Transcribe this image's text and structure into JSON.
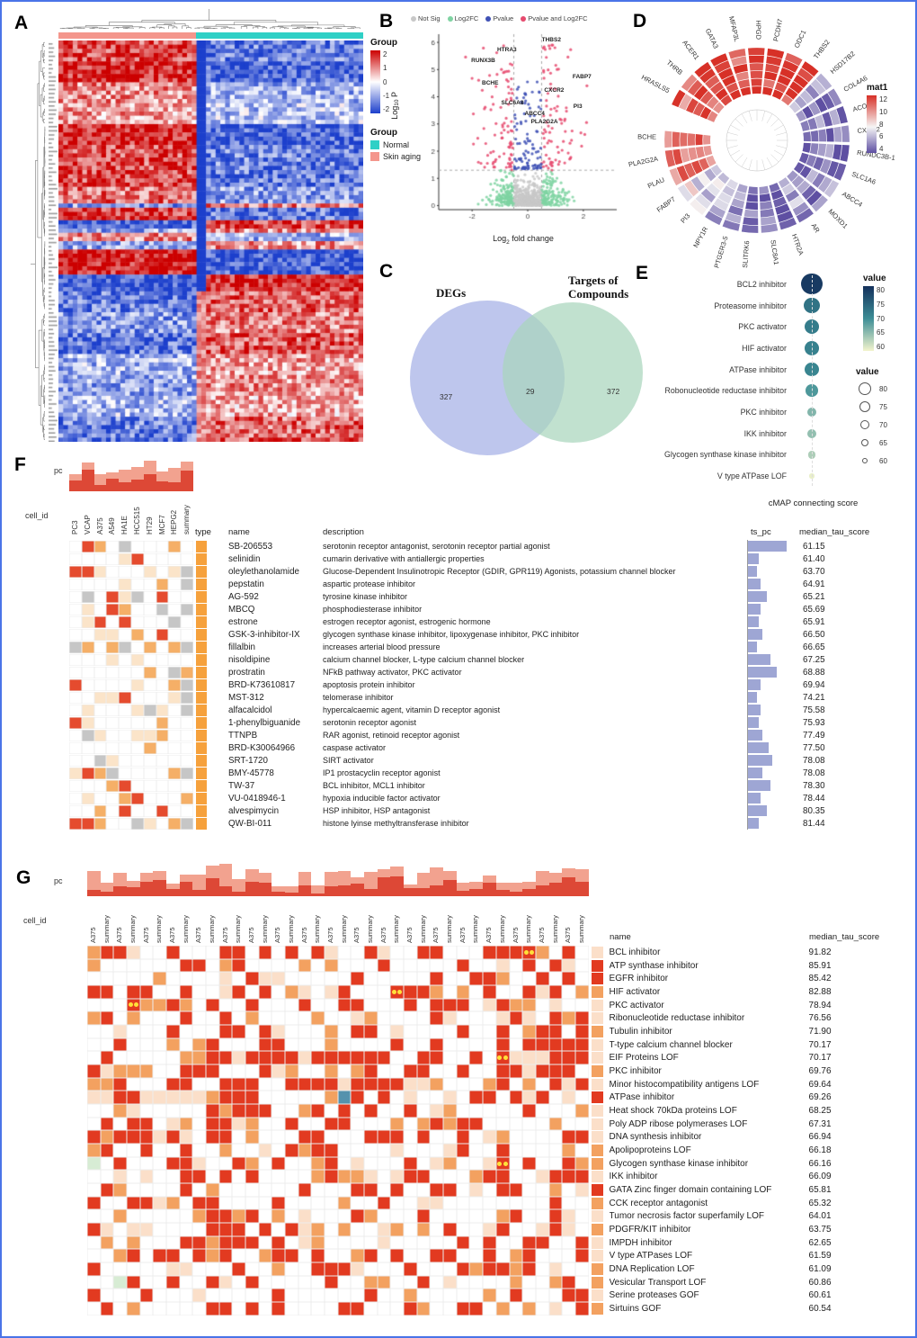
{
  "chart_data": [
    {
      "panel": "A",
      "letter": "A",
      "type": "heatmap",
      "colorbar_title": "Group",
      "colorbar_ticks": [
        "2",
        "1",
        "0",
        "-1",
        "-2"
      ],
      "group_legend_title": "Group",
      "groups": [
        {
          "label": "Normal",
          "color": "#2fd0c6"
        },
        {
          "label": "Skin aging",
          "color": "#f4968c"
        }
      ],
      "column_group_order": [
        "Skin aging",
        "Normal"
      ],
      "column_split_ratio": 0.45,
      "heat_colors": {
        "high": "#cc0000",
        "mid": "#ffffff",
        "low": "#1c3fcc"
      },
      "grid": {
        "rows": 96,
        "cols": 64
      }
    },
    {
      "panel": "B",
      "letter": "B",
      "type": "scatter",
      "subtype": "volcano",
      "xlabel_parts": [
        "Log",
        "2",
        " fold change"
      ],
      "ylabel_parts": [
        "Log",
        "10",
        " P"
      ],
      "x_ticks": [
        "-2",
        "0",
        "2"
      ],
      "y_ticks": [
        "0",
        "1",
        "2",
        "3",
        "4",
        "5",
        "6"
      ],
      "xlim": [
        -3.2,
        3.2
      ],
      "ylim": [
        -0.15,
        6.3
      ],
      "legend": [
        {
          "label": "Not Sig",
          "color": "#c8c8c8"
        },
        {
          "label": "Log2FC",
          "color": "#7fd3a2"
        },
        {
          "label": "Pvalue",
          "color": "#3f51b5"
        },
        {
          "label": "Pvalue and Log2FC",
          "color": "#e64a6e"
        }
      ],
      "thresholds": {
        "log2fc": 0.5,
        "p": 1.3
      },
      "labeled_points": [
        {
          "gene": "HTRA3",
          "x": -0.75,
          "y": 5.55
        },
        {
          "gene": "THBS2",
          "x": 0.85,
          "y": 5.9
        },
        {
          "gene": "RUNX3B",
          "x": -1.6,
          "y": 5.15
        },
        {
          "gene": "BCHE",
          "x": -1.35,
          "y": 4.3
        },
        {
          "gene": "FABP7",
          "x": 1.95,
          "y": 4.55
        },
        {
          "gene": "CXCR2",
          "x": 0.95,
          "y": 4.05
        },
        {
          "gene": "SLC6A8",
          "x": -0.55,
          "y": 3.6
        },
        {
          "gene": "PI3",
          "x": 1.8,
          "y": 3.45
        },
        {
          "gene": "ABCC4",
          "x": 0.25,
          "y": 3.2
        },
        {
          "gene": "PLA2G2A",
          "x": 0.6,
          "y": 2.9
        }
      ],
      "n_points": 760
    },
    {
      "panel": "C",
      "letter": "C",
      "type": "venn",
      "left_label": "DEGs",
      "right_label_lines": [
        "Targets of",
        "Compounds"
      ],
      "left_count": "327",
      "overlap_count": "29",
      "right_count": "372",
      "left_color": "#aeb8e8",
      "right_color": "#a9d6bd"
    },
    {
      "panel": "D",
      "letter": "D",
      "type": "circular_heatmap",
      "legend_title": "mat1",
      "legend_ticks": [
        "12",
        "10",
        "8",
        "6",
        "4"
      ],
      "palette": {
        "high": "#d73027",
        "mid": "#f5f5f5",
        "low": "#5e4fa2"
      },
      "genes": [
        {
          "name": "HRASLS5",
          "value": 11
        },
        {
          "name": "THRB",
          "value": 11.5
        },
        {
          "name": "ACER1",
          "value": 12
        },
        {
          "name": "GATA3",
          "value": 12
        },
        {
          "name": "MFAP3L",
          "value": 11
        },
        {
          "name": "HPGD",
          "value": 12
        },
        {
          "name": "PCDH7",
          "value": 11.5
        },
        {
          "name": "ODC1",
          "value": 12
        },
        {
          "name": "THBS2",
          "value": 12
        },
        {
          "name": "HSD17B2",
          "value": 6
        },
        {
          "name": "COL4A6",
          "value": 5
        },
        {
          "name": "ACOT4",
          "value": 5.5
        },
        {
          "name": "CXCR2",
          "value": 4.5
        },
        {
          "name": "RUNDC3B-1",
          "value": 5
        },
        {
          "name": "SLC1A6",
          "value": 4.5
        },
        {
          "name": "ABCC4",
          "value": 5.5
        },
        {
          "name": "MOXD1",
          "value": 5
        },
        {
          "name": "AR",
          "value": 6
        },
        {
          "name": "HTR2A",
          "value": 4.5
        },
        {
          "name": "SLC8A1",
          "value": 5
        },
        {
          "name": "SLITRK6",
          "value": 4.5
        },
        {
          "name": "PTGER3-5",
          "value": 5.5
        },
        {
          "name": "NPY1R",
          "value": 6
        },
        {
          "name": "PI3",
          "value": 7
        },
        {
          "name": "FABP7",
          "value": 7.5
        },
        {
          "name": "PLAU",
          "value": 10
        },
        {
          "name": "PLA2G2A",
          "value": 11
        },
        {
          "name": "BCHE",
          "value": 11
        }
      ]
    },
    {
      "panel": "E",
      "letter": "E",
      "type": "dotplot",
      "categories": [
        "BCL2 inhibitor",
        "Proteasome inhibitor",
        "PKC activator",
        "HIF activator",
        "ATPase inhibitor",
        "Robonucleotide reductase inhibitor",
        "PKC inhibitor",
        "IKK inhibitor",
        "Glycogen synthase kinase inhibitor",
        "V type ATPase LOF"
      ],
      "values": [
        95,
        82,
        80,
        79,
        78,
        74,
        68,
        66,
        63,
        56
      ],
      "xlabel": "cMAP connecting score",
      "color_legend": {
        "title": "value",
        "ticks": [
          "80",
          "75",
          "70",
          "65",
          "60"
        ]
      },
      "size_legend": {
        "title": "value",
        "ticks": [
          "80",
          "75",
          "70",
          "65",
          "60"
        ]
      },
      "color_scale": {
        "high": "#14315c",
        "mid": "#3d8e96",
        "low": "#f2f4cd"
      }
    },
    {
      "panel": "F",
      "letter": "F",
      "type": "table",
      "pc_label": "pc",
      "cell_id_label": "cell_id",
      "cell_lines": [
        "PC3",
        "VCAP",
        "A375",
        "A549",
        "HA1E",
        "HCC515",
        "HT29",
        "MCF7",
        "HEPG2",
        "summary"
      ],
      "headers": {
        "type": "type",
        "name": "name",
        "description": "description",
        "ts_pc": "ts_pc",
        "score": "median_tau_score"
      },
      "type_color": "#f6a13c",
      "rows": [
        {
          "name": "SB-206553",
          "description": "serotonin receptor antagonist, serotonin receptor partial agonist",
          "ts_pc": 0.9,
          "score": "61.15"
        },
        {
          "name": "selinidin",
          "description": "cumarin derivative with antiallergic properties",
          "ts_pc": 0.2,
          "score": "61.40"
        },
        {
          "name": "oleylethanolamide",
          "description": "Glucose-Dependent Insulinotropic Receptor (GDIR, GPR119)  Agonists, potassium channel blocker",
          "ts_pc": 0.15,
          "score": "63.70"
        },
        {
          "name": "pepstatin",
          "description": "aspartic protease inhibitor",
          "ts_pc": 0.25,
          "score": "64.91"
        },
        {
          "name": "AG-592",
          "description": "tyrosine kinase inhibitor",
          "ts_pc": 0.4,
          "score": "65.21"
        },
        {
          "name": "MBCQ",
          "description": "phosphodiesterase inhibitor",
          "ts_pc": 0.25,
          "score": "65.69"
        },
        {
          "name": "estrone",
          "description": "estrogen receptor agonist, estrogenic hormone",
          "ts_pc": 0.2,
          "score": "65.91"
        },
        {
          "name": "GSK-3-inhibitor-IX",
          "description": "glycogen synthase kinase inhibitor, lipoxygenase inhibitor, PKC inhibitor",
          "ts_pc": 0.3,
          "score": "66.50"
        },
        {
          "name": "fillalbin",
          "description": "increases arterial blood pressure",
          "ts_pc": 0.15,
          "score": "66.65"
        },
        {
          "name": "nisoldipine",
          "description": "calcium channel blocker, L-type calcium channel blocker",
          "ts_pc": 0.5,
          "score": "67.25"
        },
        {
          "name": "prostratin",
          "description": "NFkB pathway activator, PKC activator",
          "ts_pc": 0.65,
          "score": "68.88"
        },
        {
          "name": "BRD-K73610817",
          "description": "apoptosis protein inhibitor",
          "ts_pc": 0.25,
          "score": "69.94"
        },
        {
          "name": "MST-312",
          "description": "telomerase inhibitor",
          "ts_pc": 0.15,
          "score": "74.21"
        },
        {
          "name": "alfacalcidol",
          "description": "hypercalcaemic agent, vitamin D receptor agonist",
          "ts_pc": 0.25,
          "score": "75.58"
        },
        {
          "name": "1-phenylbiguanide",
          "description": "serotonin receptor agonist",
          "ts_pc": 0.2,
          "score": "75.93"
        },
        {
          "name": "TTNPB",
          "description": "RAR agonist, retinoid receptor agonist",
          "ts_pc": 0.3,
          "score": "77.49"
        },
        {
          "name": "BRD-K30064966",
          "description": "caspase activator",
          "ts_pc": 0.45,
          "score": "77.50"
        },
        {
          "name": "SRT-1720",
          "description": "SIRT activator",
          "ts_pc": 0.55,
          "score": "78.08"
        },
        {
          "name": "BMY-45778",
          "description": "IP1 prostacyclin receptor agonist",
          "ts_pc": 0.3,
          "score": "78.08"
        },
        {
          "name": "TW-37",
          "description": "BCL inhibitor, MCL1 inhibitor",
          "ts_pc": 0.5,
          "score": "78.30"
        },
        {
          "name": "VU-0418946-1",
          "description": "hypoxia inducible factor activator",
          "ts_pc": 0.25,
          "score": "78.44"
        },
        {
          "name": "alvespimycin",
          "description": "HSP inhibitor, HSP antagonist",
          "ts_pc": 0.4,
          "score": "80.35"
        },
        {
          "name": "QW-BI-011",
          "description": "histone lyinse methyltransferase inhibitor",
          "ts_pc": 0.2,
          "score": "81.44"
        }
      ]
    },
    {
      "panel": "G",
      "letter": "G",
      "type": "table_heatmap",
      "pc_label": "pc",
      "cell_id_label": "cell_id",
      "column_labels_repeat": [
        "A375",
        "summary"
      ],
      "n_column_pairs": 19,
      "headers": {
        "name": "name",
        "score": "median_tau_score"
      },
      "rows": [
        {
          "name": "BCL inhibitor",
          "score": "91.82"
        },
        {
          "name": "ATP synthase inhibitor",
          "score": "85.91"
        },
        {
          "name": "EGFR inhibitor",
          "score": "85.42"
        },
        {
          "name": "HIF activator",
          "score": "82.88"
        },
        {
          "name": "PKC activator",
          "score": "78.94"
        },
        {
          "name": "Ribonucleotide reductase inhibitor",
          "score": "76.56"
        },
        {
          "name": "Tubulin inhibitor",
          "score": "71.90"
        },
        {
          "name": "T-type calcium channel blocker",
          "score": "70.17"
        },
        {
          "name": "EIF Proteins LOF",
          "score": "70.17"
        },
        {
          "name": "PKC inhibitor",
          "score": "69.76"
        },
        {
          "name": "Minor histocompatibility antigens LOF",
          "score": "69.64"
        },
        {
          "name": "ATPase inhibitor",
          "score": "69.26"
        },
        {
          "name": "Heat shock 70kDa proteins LOF",
          "score": "68.25"
        },
        {
          "name": "Poly ADP ribose polymerases LOF",
          "score": "67.31"
        },
        {
          "name": "DNA synthesis inhibitor",
          "score": "66.94"
        },
        {
          "name": "Apolipoproteins LOF",
          "score": "66.18"
        },
        {
          "name": "Glycogen synthase kinase inhibitor",
          "score": "66.16"
        },
        {
          "name": "IKK inhibitor",
          "score": "66.09"
        },
        {
          "name": "GATA Zinc finger domain containing LOF",
          "score": "65.81"
        },
        {
          "name": "CCK receptor antagonist",
          "score": "65.32"
        },
        {
          "name": "Tumor necrosis factor superfamily LOF",
          "score": "64.01"
        },
        {
          "name": "PDGFR/KIT inhibitor",
          "score": "63.75"
        },
        {
          "name": "IMPDH inhibitor",
          "score": "62.65"
        },
        {
          "name": "V type ATPases LOF",
          "score": "61.59"
        },
        {
          "name": "DNA Replication LOF",
          "score": "61.09"
        },
        {
          "name": "Vesicular Transport LOF",
          "score": "60.86"
        },
        {
          "name": "Serine proteases GOF",
          "score": "60.61"
        },
        {
          "name": "Sirtuins GOF",
          "score": "60.54"
        }
      ],
      "highlight_dots": [
        [
          0,
          33
        ],
        [
          3,
          23
        ],
        [
          4,
          3
        ],
        [
          8,
          31
        ],
        [
          16,
          31
        ]
      ],
      "special_cells": {
        "teal": [
          [
            11,
            19
          ]
        ],
        "green": [
          [
            16,
            0
          ],
          [
            25,
            2
          ]
        ]
      }
    }
  ]
}
